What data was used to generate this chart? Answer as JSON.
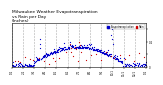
{
  "title": "Milwaukee Weather Evapotranspiration\nvs Rain per Day\n(Inches)",
  "title_fontsize": 3.2,
  "legend_labels": [
    "Evapotranspiration",
    "Rain"
  ],
  "legend_colors": [
    "#0000cc",
    "#cc0000"
  ],
  "evap_color": "#0000cc",
  "rain_color": "#cc0000",
  "background_color": "#ffffff",
  "grid_color": "#999999",
  "ylim": [
    0,
    0.35
  ],
  "xlim": [
    0,
    365
  ],
  "n_days": 365,
  "xtick_positions": [
    0,
    31,
    59,
    90,
    120,
    151,
    181,
    212,
    243,
    273,
    304,
    334,
    364
  ],
  "xtick_labels": [
    "1/1",
    "2/1",
    "3/1",
    "4/1",
    "5/1",
    "6/1",
    "7/1",
    "8/1",
    "9/1",
    "10/1",
    "11/1",
    "12/1",
    "1/1"
  ],
  "ytick_positions": [
    0.0,
    0.1,
    0.2,
    0.3
  ],
  "ytick_labels": [
    "0",
    "",
    "0.2",
    ""
  ],
  "figwidth": 1.6,
  "figheight": 0.87,
  "dpi": 100
}
